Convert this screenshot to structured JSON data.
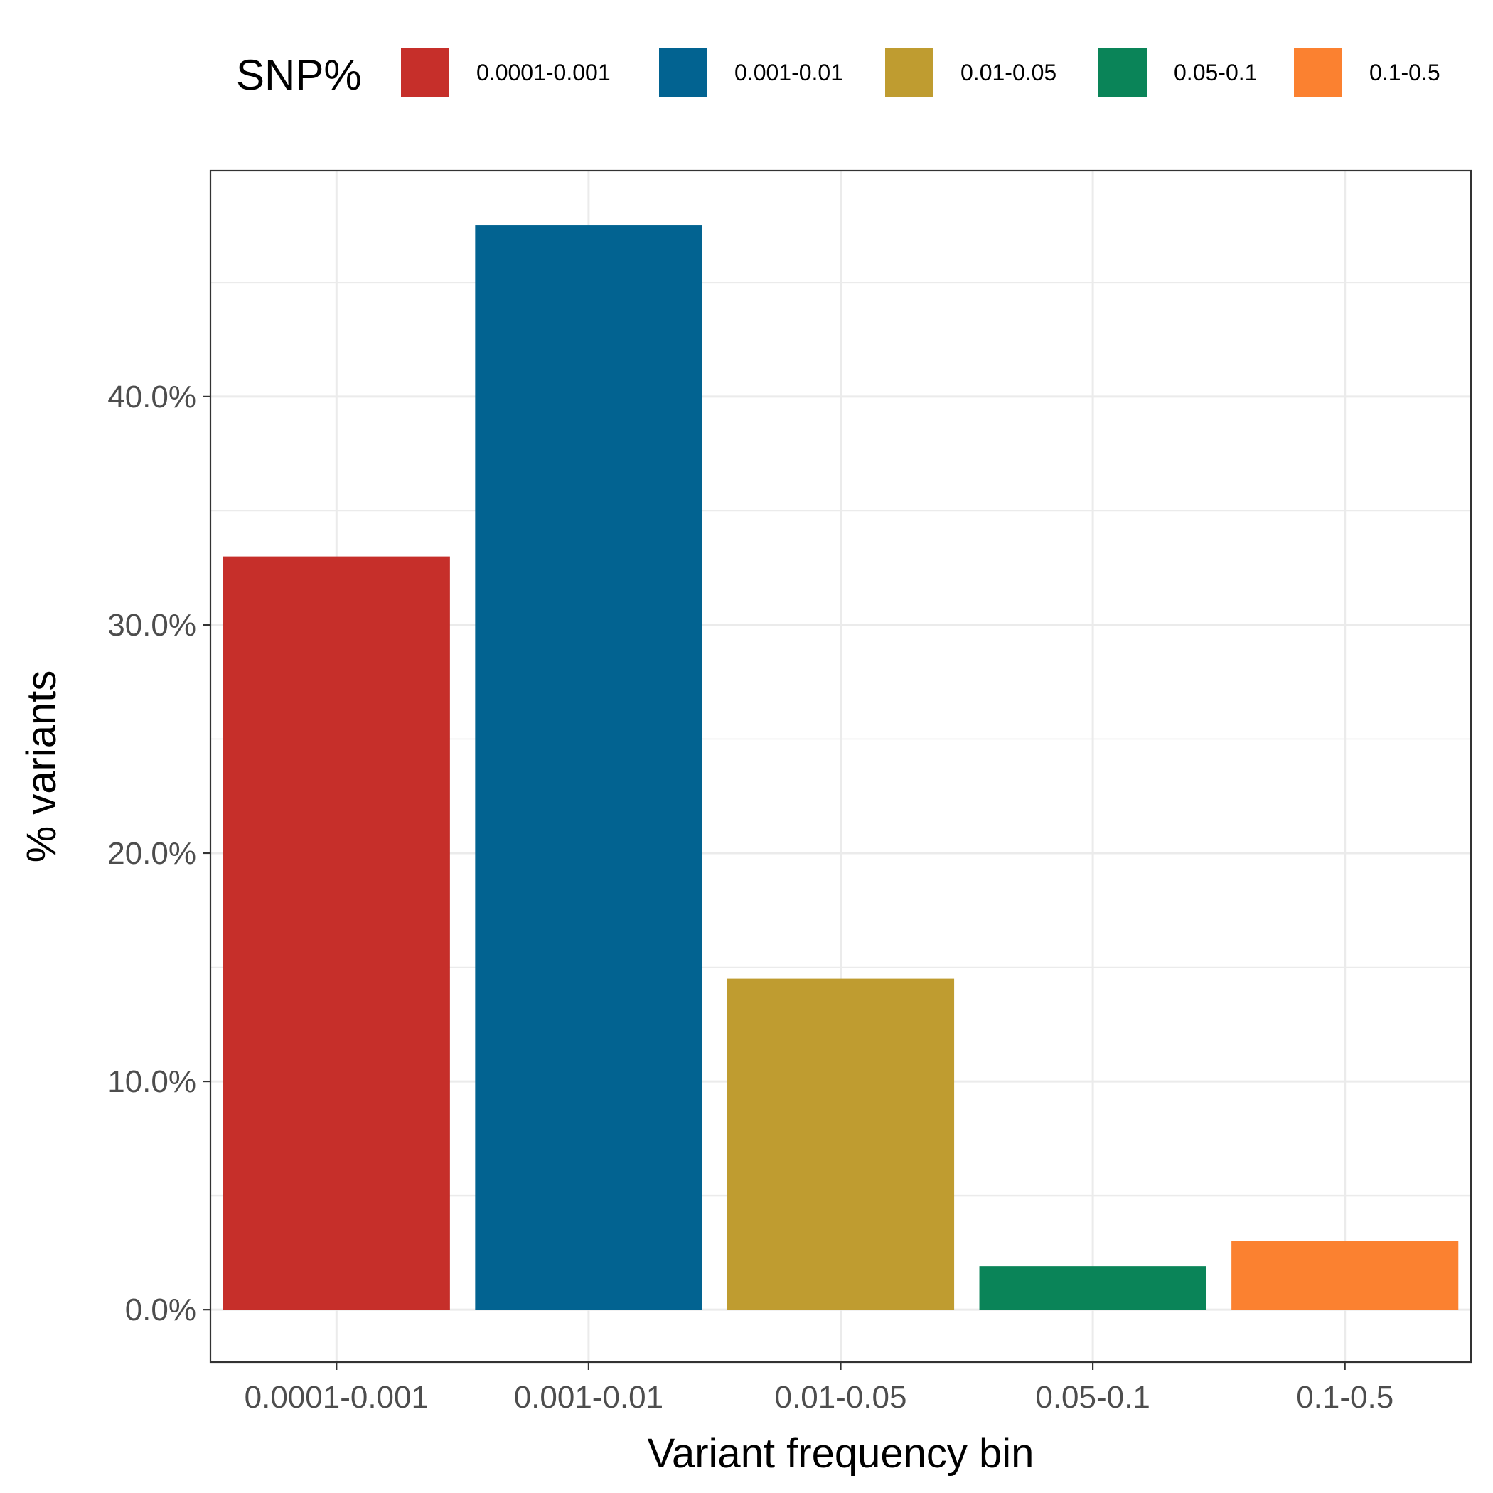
{
  "chart_data": {
    "type": "bar",
    "xlabel": "Variant frequency bin",
    "ylabel": "% variants",
    "categories": [
      "0.0001-0.001",
      "0.001-0.01",
      "0.01-0.05",
      "0.05-0.1",
      "0.1-0.5"
    ],
    "values": [
      33.0,
      47.5,
      14.5,
      1.9,
      3.0
    ],
    "colors": [
      "#c62f2a",
      "#026391",
      "#bf9c30",
      "#0a8458",
      "#fb8130"
    ],
    "ylim": [
      -2.3,
      49.9
    ],
    "yticks": [
      0,
      10,
      20,
      30,
      40
    ],
    "ytick_labels": [
      "0.0%",
      "10.0%",
      "20.0%",
      "30.0%",
      "40.0%"
    ],
    "grid": true,
    "legend": {
      "title": "SNP%",
      "position": "top",
      "entries": [
        "0.0001-0.001",
        "0.001-0.01",
        "0.01-0.05",
        "0.05-0.1",
        "0.1-0.5"
      ]
    }
  }
}
